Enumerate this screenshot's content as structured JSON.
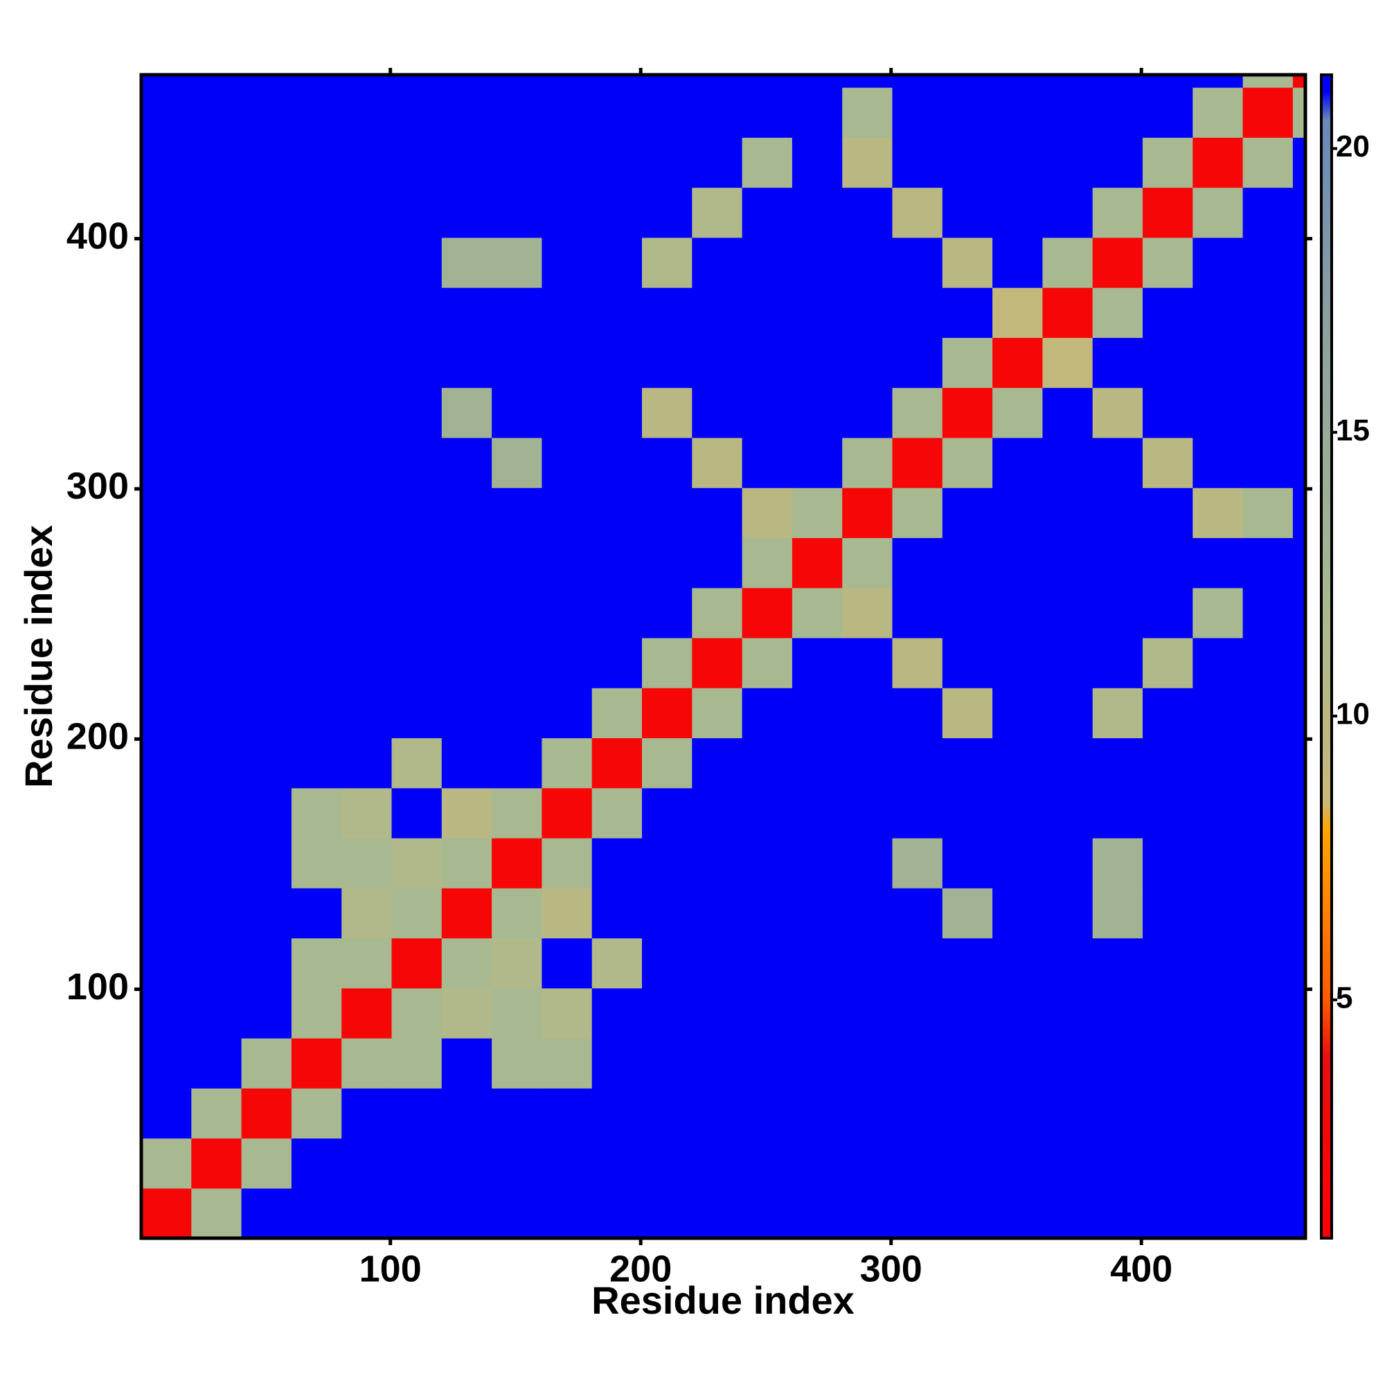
{
  "chart_data": {
    "type": "heatmap",
    "xlabel": "Residue index",
    "ylabel": "Residue index",
    "bins": [
      0.5,
      20.5,
      40.5,
      60.5,
      80.5,
      100.5,
      120.5,
      140.5,
      160.5,
      180.5,
      200.5,
      220.5,
      240.5,
      260.5,
      280.5,
      300.5,
      320.5,
      340.5,
      360.5,
      380.5,
      400.5,
      420.5,
      440.5,
      460.5,
      465.5
    ],
    "xlim": [
      0.5,
      465.5
    ],
    "ylim": [
      0.5,
      465.5
    ],
    "xticks": [
      100,
      200,
      300,
      400
    ],
    "yticks": [
      100,
      200,
      300,
      400
    ],
    "clim": [
      0.8,
      21.3
    ],
    "cticks": [
      5,
      10,
      15,
      20
    ],
    "colorscale": [
      {
        "value": 0.8,
        "color": "#ff0000"
      },
      {
        "value": 4,
        "color": "#e81010"
      },
      {
        "value": 5,
        "color": "#ff5a00"
      },
      {
        "value": 8,
        "color": "#ffa500"
      },
      {
        "value": 8.5,
        "color": "#c8b878"
      },
      {
        "value": 12,
        "color": "#a8b890"
      },
      {
        "value": 17,
        "color": "#8ca0a0"
      },
      {
        "value": 20.5,
        "color": "#6a88b8"
      },
      {
        "value": 21,
        "color": "#0000fa"
      }
    ],
    "values": [
      [
        2,
        12,
        21,
        21,
        21,
        21,
        21,
        21,
        21,
        21,
        21,
        21,
        21,
        21,
        21,
        21,
        21,
        21,
        21,
        21,
        21,
        21,
        21,
        21
      ],
      [
        12,
        2,
        12,
        21,
        21,
        21,
        21,
        21,
        21,
        21,
        21,
        21,
        21,
        21,
        21,
        21,
        21,
        21,
        21,
        21,
        21,
        21,
        21,
        21
      ],
      [
        21,
        12,
        2,
        12,
        21,
        21,
        21,
        21,
        21,
        21,
        21,
        21,
        21,
        21,
        21,
        21,
        21,
        21,
        21,
        21,
        21,
        21,
        21,
        21
      ],
      [
        21,
        21,
        12,
        2,
        12,
        12,
        21,
        12,
        12,
        21,
        21,
        21,
        21,
        21,
        21,
        21,
        21,
        21,
        21,
        21,
        21,
        21,
        21,
        21
      ],
      [
        21,
        21,
        21,
        12,
        2,
        12,
        11,
        12,
        11,
        21,
        21,
        21,
        21,
        21,
        21,
        21,
        21,
        21,
        21,
        21,
        21,
        21,
        21,
        21
      ],
      [
        21,
        21,
        21,
        12,
        12,
        2,
        12,
        11,
        21,
        11,
        21,
        21,
        21,
        21,
        21,
        21,
        21,
        21,
        21,
        21,
        21,
        21,
        21,
        21
      ],
      [
        21,
        21,
        21,
        21,
        11,
        12,
        2,
        12,
        10,
        21,
        21,
        21,
        21,
        21,
        21,
        21,
        13,
        21,
        21,
        13,
        21,
        21,
        21,
        21
      ],
      [
        21,
        21,
        21,
        12,
        12,
        11,
        12,
        2,
        12,
        21,
        21,
        21,
        21,
        21,
        21,
        13,
        21,
        21,
        21,
        13,
        21,
        21,
        21,
        21
      ],
      [
        21,
        21,
        21,
        12,
        11,
        21,
        10,
        12,
        2,
        12,
        21,
        21,
        21,
        21,
        21,
        21,
        21,
        21,
        21,
        21,
        21,
        21,
        21,
        21
      ],
      [
        21,
        21,
        21,
        21,
        21,
        11,
        21,
        21,
        12,
        2,
        12,
        21,
        21,
        21,
        21,
        21,
        21,
        21,
        21,
        21,
        21,
        21,
        21,
        21
      ],
      [
        21,
        21,
        21,
        21,
        21,
        21,
        21,
        21,
        21,
        12,
        2,
        12,
        21,
        21,
        21,
        21,
        10,
        21,
        21,
        11,
        21,
        21,
        21,
        21
      ],
      [
        21,
        21,
        21,
        21,
        21,
        21,
        21,
        21,
        21,
        21,
        12,
        2,
        12,
        21,
        21,
        10,
        21,
        21,
        21,
        21,
        11,
        21,
        21,
        21
      ],
      [
        21,
        21,
        21,
        21,
        21,
        21,
        21,
        21,
        21,
        21,
        21,
        12,
        2,
        12,
        10,
        21,
        21,
        21,
        21,
        21,
        21,
        12,
        21,
        21
      ],
      [
        21,
        21,
        21,
        21,
        21,
        21,
        21,
        21,
        21,
        21,
        21,
        21,
        12,
        2,
        12,
        21,
        21,
        21,
        21,
        21,
        21,
        21,
        21,
        21
      ],
      [
        21,
        21,
        21,
        21,
        21,
        21,
        21,
        21,
        21,
        21,
        21,
        21,
        10,
        12,
        2,
        12,
        21,
        21,
        21,
        21,
        21,
        10,
        12,
        21
      ],
      [
        21,
        21,
        21,
        21,
        21,
        21,
        21,
        13,
        21,
        21,
        21,
        10,
        21,
        21,
        12,
        2,
        12,
        21,
        21,
        21,
        10,
        21,
        21,
        21
      ],
      [
        21,
        21,
        21,
        21,
        21,
        21,
        13,
        21,
        21,
        21,
        10,
        21,
        21,
        21,
        21,
        12,
        2,
        12,
        21,
        10,
        21,
        21,
        21,
        21
      ],
      [
        21,
        21,
        21,
        21,
        21,
        21,
        21,
        21,
        21,
        21,
        21,
        21,
        21,
        21,
        21,
        21,
        12,
        2,
        9,
        21,
        21,
        21,
        21,
        21
      ],
      [
        21,
        21,
        21,
        21,
        21,
        21,
        21,
        21,
        21,
        21,
        21,
        21,
        21,
        21,
        21,
        21,
        21,
        9,
        2,
        12,
        21,
        21,
        21,
        21
      ],
      [
        21,
        21,
        21,
        21,
        21,
        21,
        13,
        13,
        21,
        21,
        11,
        21,
        21,
        21,
        21,
        21,
        10,
        21,
        12,
        2,
        12,
        21,
        21,
        21
      ],
      [
        21,
        21,
        21,
        21,
        21,
        21,
        21,
        21,
        21,
        21,
        21,
        11,
        21,
        21,
        21,
        10,
        21,
        21,
        21,
        12,
        2,
        12,
        21,
        21
      ],
      [
        21,
        21,
        21,
        21,
        21,
        21,
        21,
        21,
        21,
        21,
        21,
        21,
        12,
        21,
        10,
        21,
        21,
        21,
        21,
        21,
        12,
        2,
        12,
        21
      ],
      [
        21,
        21,
        21,
        21,
        21,
        21,
        21,
        21,
        21,
        21,
        21,
        21,
        21,
        21,
        12,
        21,
        21,
        21,
        21,
        21,
        21,
        12,
        2,
        12
      ],
      [
        21,
        21,
        21,
        21,
        21,
        21,
        21,
        21,
        21,
        21,
        21,
        21,
        21,
        21,
        21,
        21,
        21,
        21,
        21,
        21,
        21,
        21,
        12,
        2
      ]
    ]
  }
}
